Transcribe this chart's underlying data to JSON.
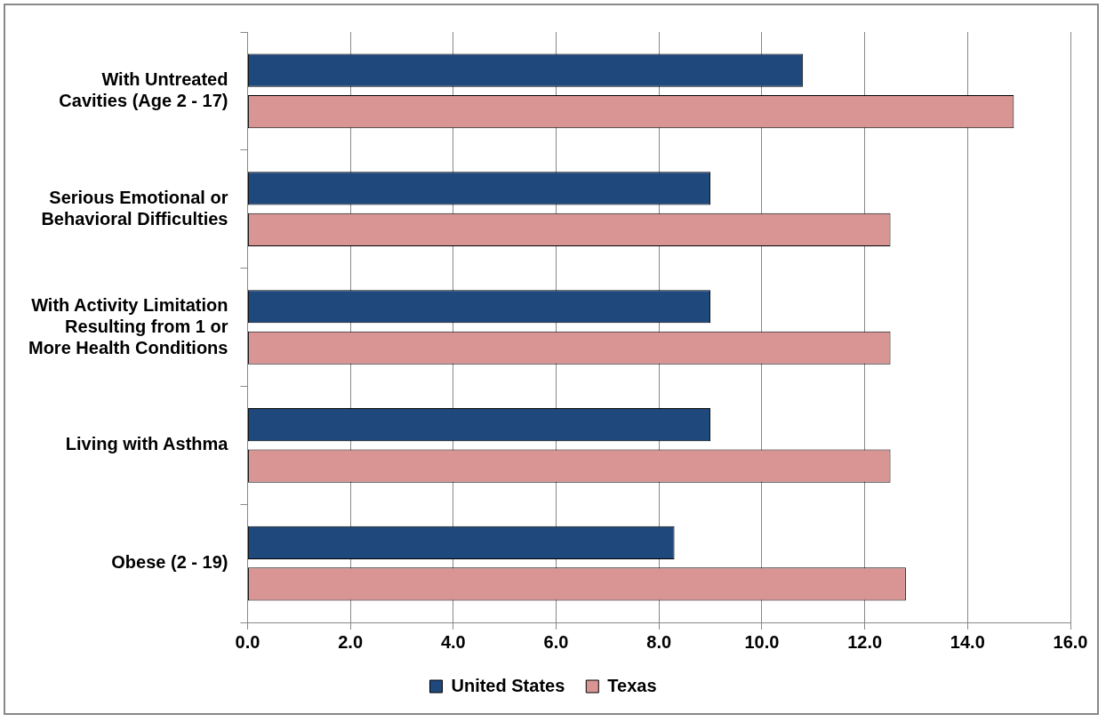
{
  "chart_data": {
    "type": "bar",
    "orientation": "horizontal",
    "categories": [
      "With Untreated\nCavities (Age 2 - 17)",
      "Serious Emotional or\nBehavioral Difficulties",
      "With Activity Limitation\nResulting from 1 or\nMore Health Conditions",
      "Living with Asthma",
      "Obese (2 - 19)"
    ],
    "series": [
      {
        "name": "United States",
        "color": "#1f487c",
        "values": [
          10.8,
          9.0,
          9.0,
          9.0,
          8.3
        ]
      },
      {
        "name": "Texas",
        "color": "#d99594",
        "values": [
          14.9,
          12.5,
          12.5,
          12.5,
          12.8
        ]
      }
    ],
    "xlim": [
      0,
      16
    ],
    "xticks": [
      {
        "value": 0,
        "label": "0.0"
      },
      {
        "value": 2,
        "label": "2.0"
      },
      {
        "value": 4,
        "label": "4.0"
      },
      {
        "value": 6,
        "label": "6.0"
      },
      {
        "value": 8,
        "label": "8.0"
      },
      {
        "value": 10,
        "label": "10.0"
      },
      {
        "value": 12,
        "label": "12.0"
      },
      {
        "value": 14,
        "label": "14.0"
      },
      {
        "value": 16,
        "label": "16.0"
      }
    ],
    "grid": "x",
    "legend": "bottom"
  }
}
